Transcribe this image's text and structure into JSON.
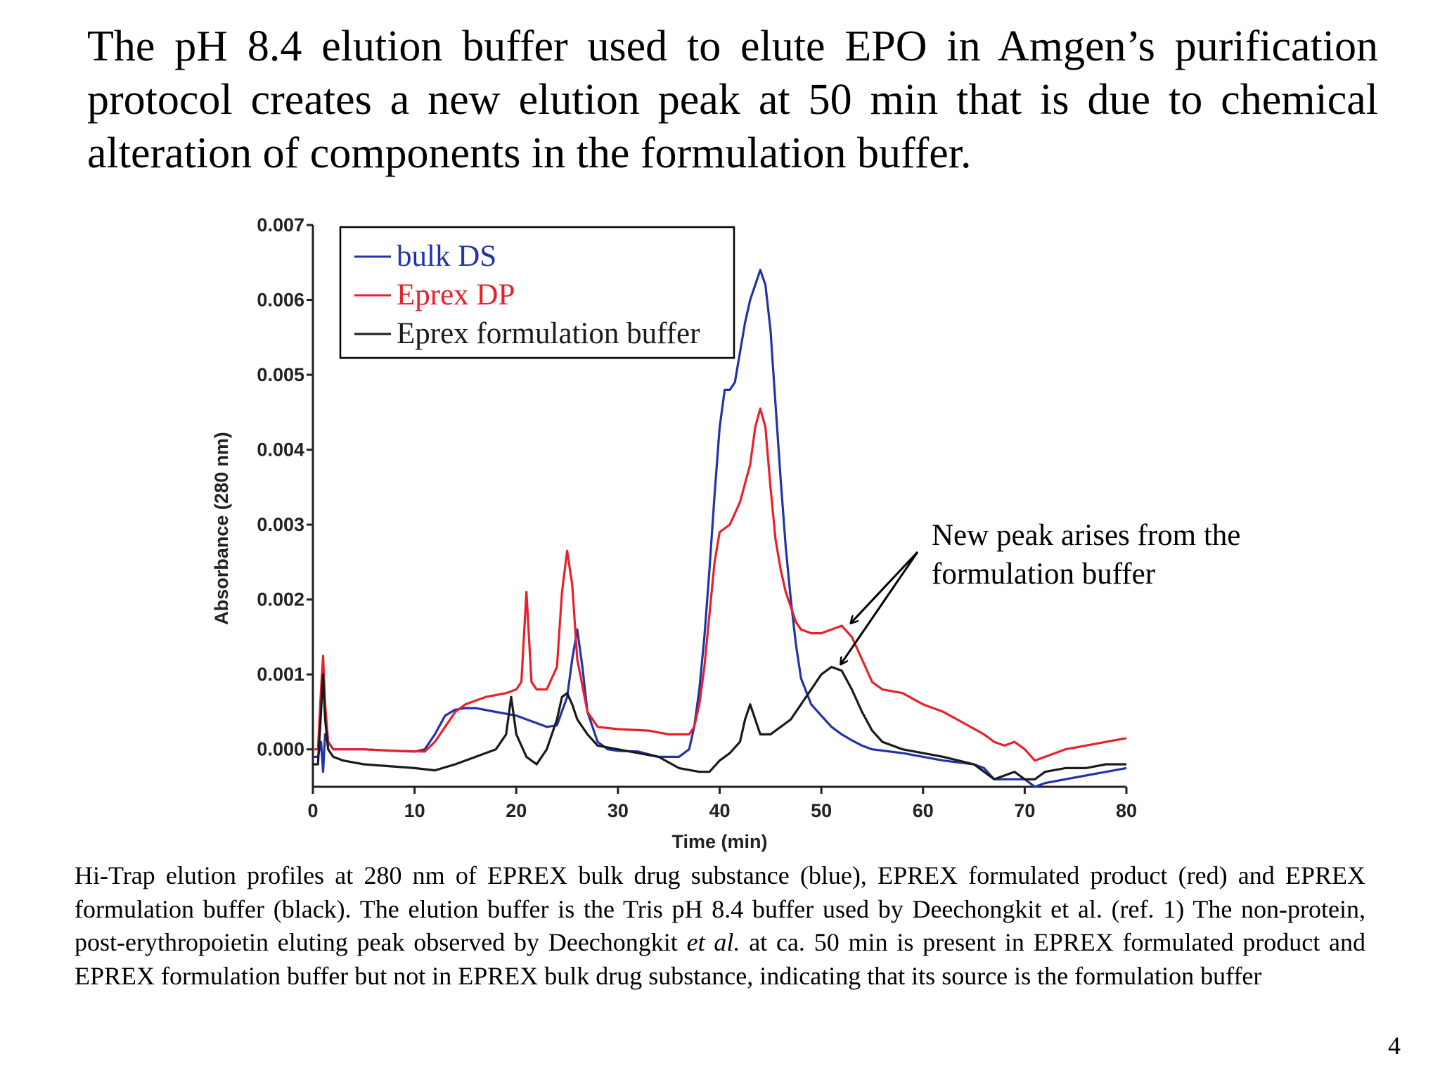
{
  "slide": {
    "headline": "The pH 8.4 elution buffer used to elute EPO in Amgen’s purification protocol creates a new elution peak at 50 min that is due to chemical alteration of components in the formulation buffer.",
    "caption": {
      "part1": "Hi-Trap elution profiles at 280 nm of EPREX bulk drug substance (blue), EPREX formulated product (red) and EPREX formulation buffer (black). The elution buffer is the Tris pH 8.4 buffer used by Deechongkit et al. (ref. 1) The non-protein, post-erythropoietin eluting peak observed by Deechongkit ",
      "italic": "et al.",
      "part2": " at ca. 50 min is present in EPREX formulated product and EPREX formulation buffer but not in EPREX bulk drug substance, indicating that its source is the formulation buffer"
    },
    "page_number": "4"
  },
  "colors": {
    "bulk_ds": "#2233aa",
    "eprex_dp": "#e8202a",
    "buffer": "#1a1a1a",
    "axis": "#222222"
  },
  "chart_data": {
    "type": "line",
    "title": "",
    "xlabel": "Time (min)",
    "ylabel": "Absorbance (280 nm)",
    "xlim": [
      0,
      80
    ],
    "ylim": [
      -0.0005,
      0.007
    ],
    "xticks": [
      "0",
      "10",
      "20",
      "30",
      "40",
      "50",
      "60",
      "70",
      "80"
    ],
    "yticks": [
      "0.000",
      "0.001",
      "0.002",
      "0.003",
      "0.004",
      "0.005",
      "0.006",
      "0.007"
    ],
    "grid": false,
    "legend_position": "top-left",
    "series": [
      {
        "name": "bulk DS",
        "color_key": "bulk_ds",
        "points": [
          [
            0,
            -0.0001
          ],
          [
            0.5,
            -0.0001
          ],
          [
            0.8,
            0.0001
          ],
          [
            1.0,
            -0.0003
          ],
          [
            1.2,
            0.0002
          ],
          [
            1.5,
            0.0001
          ],
          [
            2,
            0.0
          ],
          [
            5,
            0.0
          ],
          [
            8,
            -2e-05
          ],
          [
            10,
            -3e-05
          ],
          [
            11,
            0.0
          ],
          [
            12,
            0.0002
          ],
          [
            13,
            0.00045
          ],
          [
            14,
            0.00053
          ],
          [
            15,
            0.00055
          ],
          [
            16,
            0.00055
          ],
          [
            18,
            0.0005
          ],
          [
            20,
            0.00045
          ],
          [
            21,
            0.0004
          ],
          [
            22,
            0.00035
          ],
          [
            23,
            0.0003
          ],
          [
            24,
            0.00032
          ],
          [
            25,
            0.0007
          ],
          [
            25.5,
            0.0012
          ],
          [
            26,
            0.0016
          ],
          [
            26.5,
            0.0011
          ],
          [
            27,
            0.0005
          ],
          [
            28,
            0.0001
          ],
          [
            29,
            0.0
          ],
          [
            30,
            -2e-05
          ],
          [
            32,
            -3e-05
          ],
          [
            34,
            -0.0001
          ],
          [
            36,
            -0.0001
          ],
          [
            37,
            0.0
          ],
          [
            37.5,
            0.0003
          ],
          [
            38,
            0.0008
          ],
          [
            38.5,
            0.0015
          ],
          [
            39,
            0.0024
          ],
          [
            39.5,
            0.0034
          ],
          [
            40,
            0.0043
          ],
          [
            40.5,
            0.0048
          ],
          [
            41,
            0.0048
          ],
          [
            41.5,
            0.0049
          ],
          [
            42,
            0.0053
          ],
          [
            42.5,
            0.0057
          ],
          [
            43,
            0.006
          ],
          [
            43.5,
            0.0062
          ],
          [
            44,
            0.0064
          ],
          [
            44.5,
            0.0062
          ],
          [
            45,
            0.0056
          ],
          [
            45.5,
            0.0046
          ],
          [
            46,
            0.0036
          ],
          [
            46.5,
            0.0027
          ],
          [
            47,
            0.002
          ],
          [
            47.5,
            0.0014
          ],
          [
            48,
            0.00095
          ],
          [
            49,
            0.0006
          ],
          [
            50,
            0.00045
          ],
          [
            51,
            0.0003
          ],
          [
            52,
            0.0002
          ],
          [
            53,
            0.00012
          ],
          [
            54,
            5e-05
          ],
          [
            55,
            0.0
          ],
          [
            58,
            -5e-05
          ],
          [
            62,
            -0.00015
          ],
          [
            65,
            -0.0002
          ],
          [
            66,
            -0.00025
          ],
          [
            67,
            -0.0004
          ],
          [
            68,
            -0.0004
          ],
          [
            69,
            -0.0004
          ],
          [
            70,
            -0.0004
          ],
          [
            71,
            -0.0005
          ],
          [
            72,
            -0.00045
          ],
          [
            74,
            -0.0004
          ],
          [
            76,
            -0.00035
          ],
          [
            78,
            -0.0003
          ],
          [
            80,
            -0.00025
          ]
        ]
      },
      {
        "name": "Eprex DP",
        "color_key": "eprex_dp",
        "points": [
          [
            0,
            0.0
          ],
          [
            0.5,
            0.0
          ],
          [
            0.8,
            0.0008
          ],
          [
            1.0,
            0.00125
          ],
          [
            1.2,
            0.0006
          ],
          [
            1.5,
            0.0001
          ],
          [
            2,
            0.0
          ],
          [
            5,
            0.0
          ],
          [
            8,
            -2e-05
          ],
          [
            11,
            -3e-05
          ],
          [
            12,
            0.0001
          ],
          [
            13,
            0.0003
          ],
          [
            14,
            0.0005
          ],
          [
            15,
            0.0006
          ],
          [
            17,
            0.0007
          ],
          [
            19,
            0.00075
          ],
          [
            20,
            0.0008
          ],
          [
            20.5,
            0.0009
          ],
          [
            21,
            0.0021
          ],
          [
            21.5,
            0.0009
          ],
          [
            22,
            0.0008
          ],
          [
            23,
            0.0008
          ],
          [
            24,
            0.0011
          ],
          [
            24.5,
            0.0021
          ],
          [
            25,
            0.00265
          ],
          [
            25.5,
            0.0022
          ],
          [
            26,
            0.0012
          ],
          [
            27,
            0.0005
          ],
          [
            28,
            0.0003
          ],
          [
            30,
            0.00027
          ],
          [
            33,
            0.00025
          ],
          [
            35,
            0.0002
          ],
          [
            37,
            0.0002
          ],
          [
            37.5,
            0.0003
          ],
          [
            38,
            0.0006
          ],
          [
            38.5,
            0.0011
          ],
          [
            39,
            0.0018
          ],
          [
            39.5,
            0.0025
          ],
          [
            40,
            0.0029
          ],
          [
            41,
            0.003
          ],
          [
            42,
            0.0033
          ],
          [
            43,
            0.0038
          ],
          [
            43.5,
            0.0043
          ],
          [
            44,
            0.00455
          ],
          [
            44.5,
            0.0043
          ],
          [
            45,
            0.0035
          ],
          [
            45.5,
            0.0028
          ],
          [
            46,
            0.0024
          ],
          [
            46.5,
            0.0021
          ],
          [
            47,
            0.0019
          ],
          [
            47.5,
            0.0017
          ],
          [
            48,
            0.0016
          ],
          [
            49,
            0.00155
          ],
          [
            50,
            0.00155
          ],
          [
            51,
            0.0016
          ],
          [
            52,
            0.00165
          ],
          [
            53,
            0.0015
          ],
          [
            54,
            0.0012
          ],
          [
            55,
            0.0009
          ],
          [
            56,
            0.0008
          ],
          [
            58,
            0.00075
          ],
          [
            60,
            0.0006
          ],
          [
            62,
            0.0005
          ],
          [
            64,
            0.00035
          ],
          [
            66,
            0.0002
          ],
          [
            67,
            0.0001
          ],
          [
            68,
            5e-05
          ],
          [
            69,
            0.0001
          ],
          [
            70,
            0.0
          ],
          [
            71,
            -0.00015
          ],
          [
            72,
            -0.0001
          ],
          [
            74,
            0.0
          ],
          [
            76,
            5e-05
          ],
          [
            78,
            0.0001
          ],
          [
            80,
            0.00015
          ]
        ]
      },
      {
        "name": "Eprex formulation buffer",
        "color_key": "buffer",
        "points": [
          [
            0,
            -0.0002
          ],
          [
            0.5,
            -0.0002
          ],
          [
            0.8,
            0.0005
          ],
          [
            1.0,
            0.001
          ],
          [
            1.2,
            0.0004
          ],
          [
            1.5,
            0.0
          ],
          [
            2,
            -0.0001
          ],
          [
            3,
            -0.00015
          ],
          [
            5,
            -0.0002
          ],
          [
            10,
            -0.00025
          ],
          [
            12,
            -0.00028
          ],
          [
            14,
            -0.0002
          ],
          [
            16,
            -0.0001
          ],
          [
            18,
            0.0
          ],
          [
            19,
            0.0002
          ],
          [
            19.5,
            0.0007
          ],
          [
            20,
            0.0002
          ],
          [
            21,
            -0.0001
          ],
          [
            22,
            -0.0002
          ],
          [
            23,
            0.0
          ],
          [
            24,
            0.0004
          ],
          [
            24.5,
            0.0007
          ],
          [
            25,
            0.00075
          ],
          [
            25.5,
            0.0006
          ],
          [
            26,
            0.0004
          ],
          [
            27,
            0.0002
          ],
          [
            28,
            5e-05
          ],
          [
            30,
            0.0
          ],
          [
            32,
            -5e-05
          ],
          [
            34,
            -0.0001
          ],
          [
            36,
            -0.00025
          ],
          [
            38,
            -0.0003
          ],
          [
            39,
            -0.0003
          ],
          [
            40,
            -0.00015
          ],
          [
            41,
            -5e-05
          ],
          [
            42,
            0.0001
          ],
          [
            42.5,
            0.0004
          ],
          [
            43,
            0.0006
          ],
          [
            43.5,
            0.0004
          ],
          [
            44,
            0.0002
          ],
          [
            45,
            0.0002
          ],
          [
            46,
            0.0003
          ],
          [
            47,
            0.0004
          ],
          [
            48,
            0.0006
          ],
          [
            49,
            0.0008
          ],
          [
            50,
            0.001
          ],
          [
            51,
            0.0011
          ],
          [
            52,
            0.00105
          ],
          [
            53,
            0.0008
          ],
          [
            54,
            0.0005
          ],
          [
            55,
            0.00025
          ],
          [
            56,
            0.0001
          ],
          [
            58,
            0.0
          ],
          [
            62,
            -0.0001
          ],
          [
            65,
            -0.0002
          ],
          [
            67,
            -0.0004
          ],
          [
            68,
            -0.00035
          ],
          [
            69,
            -0.0003
          ],
          [
            70,
            -0.0004
          ],
          [
            71,
            -0.0004
          ],
          [
            72,
            -0.0003
          ],
          [
            74,
            -0.00025
          ],
          [
            76,
            -0.00025
          ],
          [
            78,
            -0.0002
          ],
          [
            80,
            -0.0002
          ]
        ]
      }
    ],
    "annotation": {
      "text_line1": "New peak arises from the",
      "text_line2": "formulation buffer",
      "arrow_targets": [
        [
          52.5,
          0.00165
        ],
        [
          51.5,
          0.0011
        ]
      ]
    }
  }
}
